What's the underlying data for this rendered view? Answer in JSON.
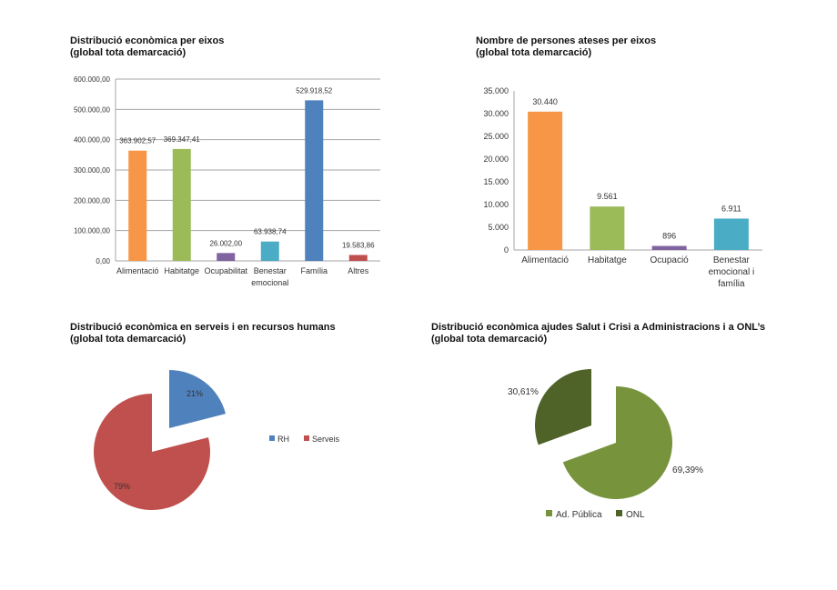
{
  "chart_data": [
    {
      "type": "bar",
      "title": "Distribució econòmica per eixos",
      "subtitle": "(global tota demarcació)",
      "categories": [
        "Alimentació",
        "Habitatge",
        "Ocupabilitat",
        "Benestar emocional",
        "Família",
        "Altres"
      ],
      "values": [
        363902.57,
        369347.41,
        26002.0,
        63938.74,
        529918.52,
        19583.86
      ],
      "data_labels": [
        "363.902,57",
        "369.347,41",
        "26.002,00",
        "63.938,74",
        "529.918,52",
        "19.583,86"
      ],
      "colors": [
        "#f79646",
        "#9bbb59",
        "#8064a2",
        "#4bacc6",
        "#4f81bd",
        "#c0504d"
      ],
      "ylim": [
        0,
        600000
      ],
      "yticks": [
        0,
        100000,
        200000,
        300000,
        400000,
        500000,
        600000
      ],
      "ytick_labels": [
        "0,00",
        "100.000,00",
        "200.000,00",
        "300.000,00",
        "400.000,00",
        "500.000,00",
        "600.000,00"
      ],
      "grid": true
    },
    {
      "type": "bar",
      "title": "Nombre de persones ateses per eixos",
      "subtitle": "(global tota demarcació)",
      "categories": [
        "Alimentació",
        "Habitatge",
        "Ocupació",
        "Benestar emocional i família"
      ],
      "values": [
        30440,
        9561,
        896,
        6911
      ],
      "data_labels": [
        "30.440",
        "9.561",
        "896",
        "6.911"
      ],
      "colors": [
        "#f79646",
        "#9bbb59",
        "#8064a2",
        "#4bacc6"
      ],
      "ylim": [
        0,
        35000
      ],
      "yticks": [
        0,
        5000,
        10000,
        15000,
        20000,
        25000,
        30000,
        35000
      ],
      "ytick_labels": [
        "0",
        "5.000",
        "10.000",
        "15.000",
        "20.000",
        "25.000",
        "30.000",
        "35.000"
      ],
      "grid": false
    },
    {
      "type": "pie",
      "title": "Distribució econòmica en serveis i en recursos humans",
      "subtitle": "(global tota demarcació)",
      "labels": [
        "RH",
        "Serveis"
      ],
      "values": [
        21,
        79
      ],
      "data_labels": [
        "21%",
        "79%"
      ],
      "colors": [
        "#4f81bd",
        "#c0504d"
      ],
      "exploded": "RH",
      "legend": "right"
    },
    {
      "type": "pie",
      "title": "Distribució econòmica ajudes Salut i Crisi a Administracions i a ONL’s",
      "subtitle": "(global tota demarcació)",
      "labels": [
        "Ad. Pública",
        "ONL"
      ],
      "values": [
        69.39,
        30.61
      ],
      "data_labels": [
        "69,39%",
        "30,61%"
      ],
      "colors": [
        "#77933c",
        "#4f6228"
      ],
      "exploded": "ONL",
      "legend": "bottom"
    }
  ]
}
